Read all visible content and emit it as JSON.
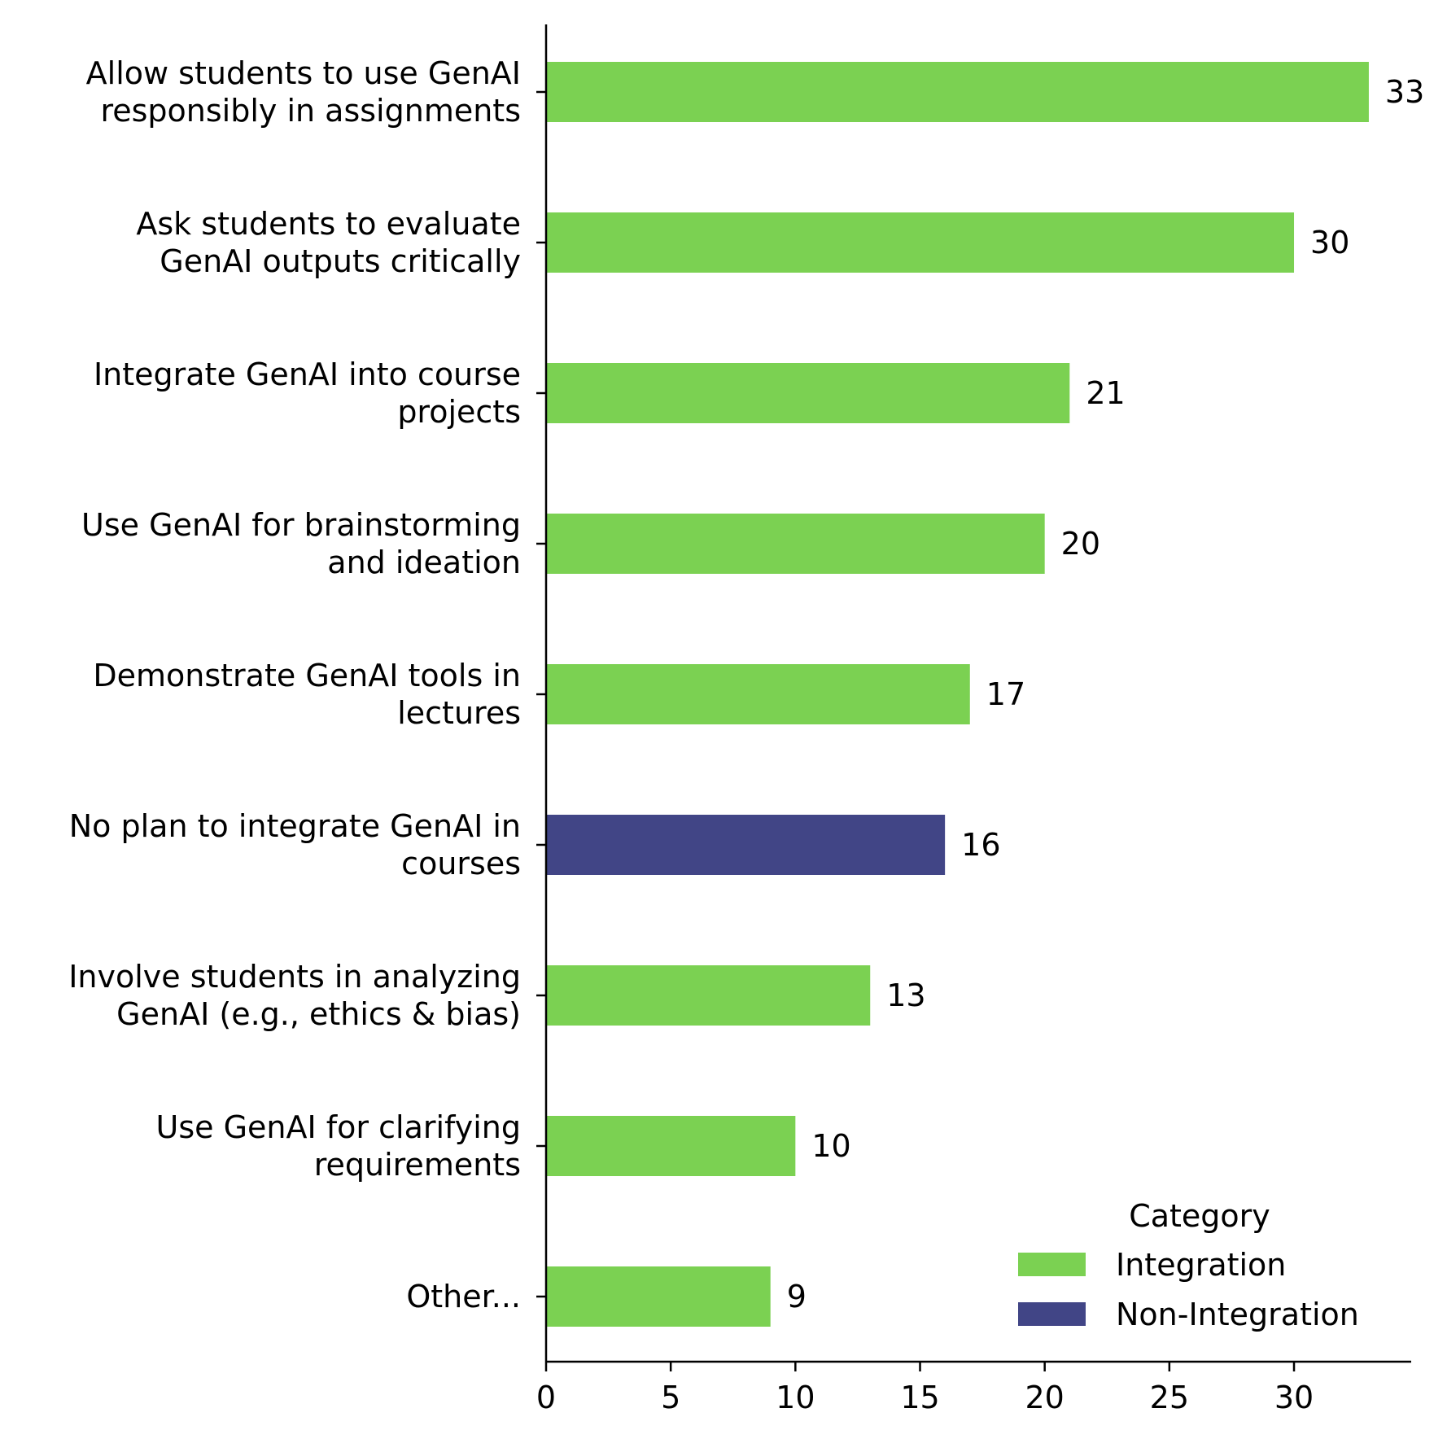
{
  "chart_data": {
    "type": "bar",
    "orientation": "horizontal",
    "categories": [
      [
        "Allow students to use GenAI",
        "responsibly in assignments"
      ],
      [
        "Ask students to evaluate",
        "GenAI outputs critically"
      ],
      [
        "Integrate GenAI into course",
        "projects"
      ],
      [
        "Use GenAI for brainstorming",
        "and ideation"
      ],
      [
        "Demonstrate GenAI tools in",
        "lectures"
      ],
      [
        "No plan to integrate GenAI in",
        "courses"
      ],
      [
        "Involve students in analyzing",
        "GenAI (e.g., ethics & bias)"
      ],
      [
        "Use GenAI for clarifying",
        "requirements"
      ],
      [
        "Other..."
      ]
    ],
    "values": [
      33,
      30,
      21,
      20,
      17,
      16,
      13,
      10,
      9
    ],
    "value_labels": [
      "33",
      "30",
      "21",
      "20",
      "17",
      "16",
      "13",
      "10",
      "9"
    ],
    "category_group": [
      "Integration",
      "Integration",
      "Integration",
      "Integration",
      "Integration",
      "Non-Integration",
      "Integration",
      "Integration",
      "Integration"
    ],
    "xlim": [
      0,
      34.7
    ],
    "xticks": [
      0,
      5,
      10,
      15,
      20,
      25,
      30
    ],
    "xtick_labels": [
      "0",
      "5",
      "10",
      "15",
      "20",
      "25",
      "30"
    ],
    "grid": false,
    "legend": {
      "title": "Category",
      "placement": "lower-right",
      "entries": [
        {
          "label": "Integration",
          "color": "#7bd152"
        },
        {
          "label": "Non-Integration",
          "color": "#414586"
        }
      ]
    },
    "colors": {
      "Integration": "#7bd152",
      "Non-Integration": "#414586",
      "axis": "#000000"
    }
  }
}
